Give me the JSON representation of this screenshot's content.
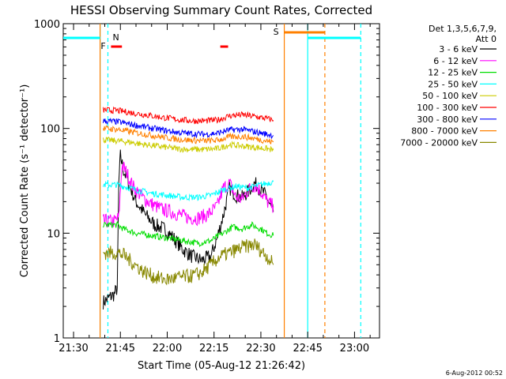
{
  "chart_data": {
    "type": "line",
    "title": "HESSI Observing Summary Count Rates, Corrected",
    "xlabel": "Start Time (05-Aug-12 21:26:42)",
    "ylabel": "Corrected Count Rate (s⁻¹ detector⁻¹)",
    "yscale": "log",
    "xlim": [
      "21:26:42",
      "23:08:00"
    ],
    "ylim": [
      1,
      1000
    ],
    "x_ticks": [
      "21:30",
      "21:45",
      "22:00",
      "22:15",
      "22:30",
      "22:45",
      "23:00"
    ],
    "y_ticks": [
      "1",
      "10",
      "100",
      "1000"
    ],
    "legend_title": "Det 1,3,5,6,7,9,",
    "legend_subtitle": "Att 0",
    "legend_position": "right",
    "series": [
      {
        "name": "3 - 6 keV",
        "color": "#000000",
        "x": [
          "21:39:30",
          "21:40:30",
          "21:42:00",
          "21:43:00",
          "21:44:00",
          "21:44:30",
          "21:45:00",
          "21:46:00",
          "21:48:00",
          "21:50:00",
          "21:53:00",
          "21:56:00",
          "21:59:00",
          "22:02:00",
          "22:05:00",
          "22:08:00",
          "22:11:00",
          "22:14:00",
          "22:16:00",
          "22:18:00",
          "22:20:00",
          "22:22:00",
          "22:24:00",
          "22:26:00",
          "22:28:00",
          "22:30:00",
          "22:32:00",
          "22:33:00",
          "22:34:00"
        ],
        "y": [
          2.2,
          2.3,
          2.5,
          2.6,
          3.0,
          30,
          55,
          40,
          28,
          20,
          15,
          12,
          11,
          9,
          7,
          6,
          5.5,
          6,
          9,
          15,
          27,
          23,
          22,
          25,
          30,
          26,
          22,
          18,
          16
        ]
      },
      {
        "name": "6 - 12 keV",
        "color": "#ff00ff",
        "x": [
          "21:39:30",
          "21:41:00",
          "21:43:00",
          "21:44:30",
          "21:45:30",
          "21:47:00",
          "21:49:00",
          "21:52:00",
          "21:55:00",
          "21:58:00",
          "22:01:00",
          "22:04:00",
          "22:07:00",
          "22:10:00",
          "22:13:00",
          "22:16:00",
          "22:18:00",
          "22:20:00",
          "22:22:00",
          "22:24:00",
          "22:26:00",
          "22:28:00",
          "22:30:00",
          "22:32:00",
          "22:34:00"
        ],
        "y": [
          13,
          13,
          13,
          14,
          45,
          38,
          28,
          22,
          19,
          17,
          16,
          15,
          14,
          14,
          15,
          18,
          27,
          30,
          22,
          21,
          26,
          29,
          25,
          20,
          18
        ]
      },
      {
        "name": "12 - 25 keV",
        "color": "#00dd00",
        "x": [
          "21:39:30",
          "21:42:00",
          "21:44:00",
          "21:46:00",
          "21:50:00",
          "21:55:00",
          "22:00:00",
          "22:05:00",
          "22:10:00",
          "22:14:00",
          "22:18:00",
          "22:21:00",
          "22:24:00",
          "22:27:00",
          "22:30:00",
          "22:32:00",
          "22:34:00"
        ],
        "y": [
          12,
          12,
          12,
          11,
          10,
          9.5,
          9,
          8.5,
          8,
          8.5,
          10,
          11.5,
          11,
          12,
          11,
          10,
          9.5
        ]
      },
      {
        "name": "25 - 50 keV",
        "color": "#00ffff",
        "x": [
          "21:39:30",
          "21:44:00",
          "21:46:00",
          "21:50:00",
          "21:55:00",
          "22:00:00",
          "22:05:00",
          "22:10:00",
          "22:14:00",
          "22:18:00",
          "22:22:00",
          "22:26:00",
          "22:30:00",
          "22:34:00"
        ],
        "y": [
          29,
          29,
          28,
          26,
          24,
          23,
          22,
          22,
          23,
          26,
          28,
          27,
          29,
          31
        ]
      },
      {
        "name": "50 - 100 keV",
        "color": "#cccc00",
        "x": [
          "21:39:30",
          "21:44:00",
          "21:48:00",
          "21:53:00",
          "21:58:00",
          "22:03:00",
          "22:08:00",
          "22:12:00",
          "22:16:00",
          "22:20:00",
          "22:24:00",
          "22:28:00",
          "22:32:00",
          "22:34:00"
        ],
        "y": [
          78,
          76,
          74,
          70,
          67,
          64,
          63,
          63,
          64,
          70,
          68,
          66,
          64,
          62
        ]
      },
      {
        "name": "100 - 300 keV",
        "color": "#ff0000",
        "x": [
          "21:39:30",
          "21:44:00",
          "21:48:00",
          "21:53:00",
          "21:58:00",
          "22:03:00",
          "22:08:00",
          "22:12:00",
          "22:16:00",
          "22:20:00",
          "22:24:00",
          "22:28:00",
          "22:32:00",
          "22:34:00"
        ],
        "y": [
          150,
          148,
          142,
          135,
          128,
          122,
          118,
          118,
          120,
          132,
          135,
          130,
          124,
          120
        ]
      },
      {
        "name": "300 - 800 keV",
        "color": "#0000ff",
        "x": [
          "21:39:30",
          "21:44:00",
          "21:48:00",
          "21:53:00",
          "21:58:00",
          "22:03:00",
          "22:08:00",
          "22:12:00",
          "22:16:00",
          "22:20:00",
          "22:24:00",
          "22:28:00",
          "22:32:00",
          "22:34:00"
        ],
        "y": [
          118,
          116,
          110,
          103,
          97,
          92,
          89,
          88,
          90,
          97,
          98,
          93,
          88,
          86
        ]
      },
      {
        "name": "800 - 7000 keV",
        "color": "#ff8000",
        "x": [
          "21:39:30",
          "21:44:00",
          "21:48:00",
          "21:53:00",
          "21:58:00",
          "22:03:00",
          "22:08:00",
          "22:12:00",
          "22:16:00",
          "22:20:00",
          "22:24:00",
          "22:28:00",
          "22:32:00",
          "22:34:00"
        ],
        "y": [
          100,
          98,
          93,
          88,
          83,
          79,
          77,
          76,
          77,
          83,
          84,
          80,
          76,
          74
        ]
      },
      {
        "name": "7000 - 20000 keV",
        "color": "#888800",
        "x": [
          "21:39:30",
          "21:44:00",
          "21:46:00",
          "21:48:00",
          "21:52:00",
          "21:56:00",
          "22:00:00",
          "22:04:00",
          "22:08:00",
          "22:11:00",
          "22:14:00",
          "22:17:00",
          "22:20:00",
          "22:24:00",
          "22:28:00",
          "22:32:00",
          "22:34:00"
        ],
        "y": [
          6.5,
          6.5,
          6.2,
          5.5,
          4.4,
          3.8,
          3.6,
          3.8,
          3.9,
          4.2,
          5.0,
          6.0,
          6.5,
          7.3,
          7.8,
          6.0,
          5.0
        ]
      }
    ],
    "annotations": {
      "saa_label": "S",
      "night_label": "N",
      "flare_label": "F",
      "saa_bars": [
        [
          "22:37:30",
          "22:50:30"
        ]
      ],
      "night_bars": [
        [
          "21:26:42",
          "21:38:30"
        ],
        [
          "22:45:00",
          "23:02:00"
        ]
      ],
      "flare_bars": [
        [
          "21:42:00",
          "21:45:30"
        ],
        [
          "22:17:00",
          "22:19:30"
        ]
      ],
      "saa_lines_solid": [
        "21:38:30",
        "22:37:30"
      ],
      "saa_lines_dashed": [
        "22:50:30"
      ],
      "night_lines_solid": [
        "21:38:30",
        "22:45:00"
      ],
      "night_lines_dashed": [
        "21:41:00",
        "23:02:00"
      ],
      "saa_color": "#ff8000",
      "night_color": "#00ffff",
      "flare_color": "#ff0000"
    }
  },
  "footer": {
    "date_stamp": "6-Aug-2012 00:52"
  }
}
